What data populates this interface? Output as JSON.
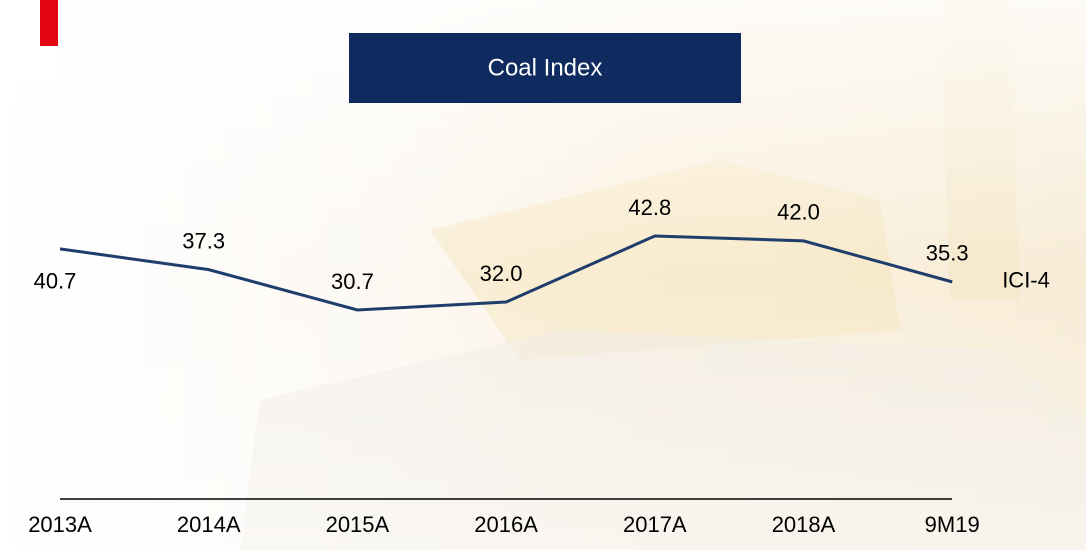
{
  "chart_data": {
    "type": "line",
    "title": "Coal Index",
    "categories": [
      "2013A",
      "2014A",
      "2015A",
      "2016A",
      "2017A",
      "2018A",
      "9M19"
    ],
    "series": [
      {
        "name": "ICI-4",
        "color": "#1f3d6b",
        "values": [
          40.7,
          37.3,
          30.7,
          32.0,
          42.8,
          42.0,
          35.3
        ],
        "value_labels": [
          "40.7",
          "37.3",
          "30.7",
          "32.0",
          "42.8",
          "42.0",
          "35.3"
        ]
      }
    ]
  }
}
